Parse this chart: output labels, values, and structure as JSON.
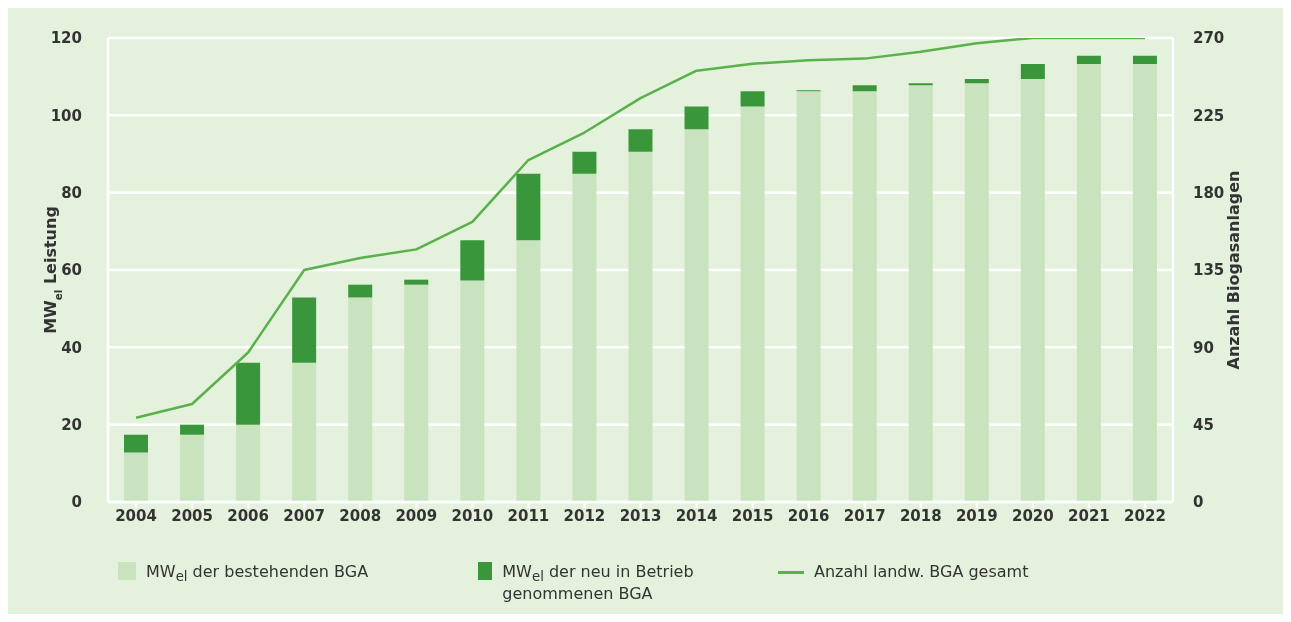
{
  "chart_data": {
    "type": "bar",
    "stacked": true,
    "categories": [
      "2004",
      "2005",
      "2006",
      "2007",
      "2008",
      "2009",
      "2010",
      "2011",
      "2012",
      "2013",
      "2014",
      "2015",
      "2016",
      "2017",
      "2018",
      "2019",
      "2020",
      "2021",
      "2022"
    ],
    "series": [
      {
        "name": "MW$_{el}$ der bestehenden BGA",
        "color": "#c8e3bd",
        "values": [
          12.8,
          17.4,
          20,
          36,
          52.9,
          56.2,
          57.3,
          67.7,
          84.9,
          90.6,
          96.4,
          102.3,
          106.2,
          106.2,
          107.8,
          108.3,
          109.4,
          113.3,
          113.3
        ]
      },
      {
        "name": "MW$_{el}$ der neu in Betrieb genommenen BGA",
        "color": "#3a963a",
        "values": [
          4.6,
          2.6,
          16,
          16.9,
          3.3,
          1.3,
          10.4,
          17.2,
          5.7,
          5.8,
          5.9,
          3.9,
          0.3,
          1.6,
          0.5,
          1.1,
          3.9,
          2.1,
          2.1
        ]
      },
      {
        "name": "Anzahl landw. BGA gesamt",
        "color": "#5ab04a",
        "type": "line",
        "axis": "y2",
        "values": [
          49,
          57,
          87,
          135,
          142,
          147,
          163,
          199,
          215,
          235,
          251,
          255,
          257,
          258,
          262,
          267,
          270,
          270,
          270
        ]
      }
    ],
    "ylabel": "MW$_{el}$ Leistung",
    "y2label": "Anzahl Biogasanlagen",
    "ylim": [
      0,
      120
    ],
    "yticks": [
      0,
      20,
      40,
      60,
      80,
      100,
      120
    ],
    "y2lim": [
      0,
      270
    ],
    "y2ticks": [
      0,
      45,
      90,
      135,
      180,
      225,
      270
    ],
    "grid": "y",
    "legend": "bottom",
    "marker": "none",
    "line_style": "solid"
  }
}
